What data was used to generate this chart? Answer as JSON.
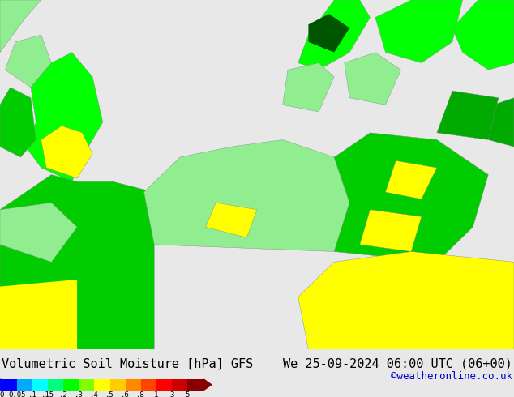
{
  "title_left": "Volumetric Soil Moisture [hPa] GFS",
  "title_right": "We 25-09-2024 06:00 UTC (06+00)",
  "credit": "©weatheronline.co.uk",
  "colorbar_values": [
    0,
    0.05,
    0.1,
    0.15,
    0.2,
    0.3,
    0.4,
    0.5,
    0.6,
    0.8,
    1,
    3,
    5
  ],
  "colorbar_labels": [
    "0",
    "0.05",
    ".1",
    ".15",
    ".2",
    ".3",
    ".4",
    ".5",
    ".6",
    ".8",
    "1",
    "3",
    "5"
  ],
  "colorbar_colors": [
    "#0000ff",
    "#00aaff",
    "#00ffff",
    "#00ff80",
    "#00ff00",
    "#80ff00",
    "#ffff00",
    "#ffcc00",
    "#ff8800",
    "#ff4400",
    "#ff0000",
    "#cc0000",
    "#880000"
  ],
  "bg_color": "#e8e8e8",
  "map_bg": "#e8e8e8",
  "title_color": "#000000",
  "credit_color": "#0000cc",
  "title_fontsize": 11,
  "credit_fontsize": 9,
  "label_fontsize": 8,
  "fig_width": 6.34,
  "fig_height": 4.9,
  "dpi": 100
}
